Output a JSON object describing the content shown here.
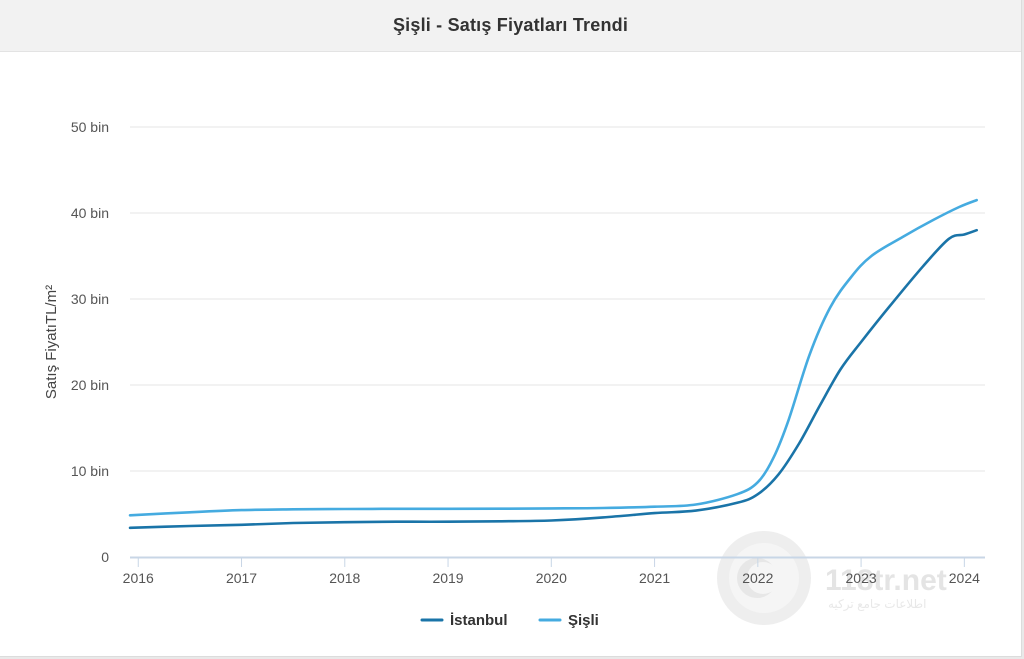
{
  "header": {
    "title": "Şişli - Satış Fiyatları Trendi"
  },
  "watermark": {
    "text": "118tr.net",
    "subtitle": "اطلاعات جامع ترکیه"
  },
  "colors": {
    "istanbul": "#1a74a8",
    "sisli": "#45abe0",
    "grid": "#e6e6e6",
    "axis": "#c8d6e6"
  },
  "chart_data": {
    "type": "line",
    "title": "Şişli - Satış Fiyatları Trendi",
    "xlabel": "",
    "ylabel": "Satış FiyatıTL/m²",
    "x_ticks": [
      "2016",
      "2017",
      "2018",
      "2019",
      "2020",
      "2021",
      "2022",
      "2023",
      "2024"
    ],
    "y_ticks": [
      "0",
      "10 bin",
      "20 bin",
      "30 bin",
      "40 bin",
      "50 bin"
    ],
    "xlim": [
      2015.92,
      2024.2
    ],
    "ylim": [
      0,
      50000
    ],
    "legend_position": "bottom-center",
    "series": [
      {
        "name": "İstanbul",
        "x": [
          2015.92,
          2016.5,
          2017.0,
          2017.5,
          2018.0,
          2018.5,
          2019.0,
          2019.5,
          2020.0,
          2020.5,
          2021.0,
          2021.4,
          2021.8,
          2022.0,
          2022.2,
          2022.4,
          2022.6,
          2022.8,
          2023.0,
          2023.3,
          2023.6,
          2023.85,
          2024.0,
          2024.12
        ],
        "y": [
          3400,
          3600,
          3750,
          3950,
          4050,
          4100,
          4100,
          4150,
          4250,
          4600,
          5100,
          5400,
          6300,
          7300,
          9600,
          13200,
          17600,
          21800,
          25000,
          29500,
          33800,
          37000,
          37500,
          38000
        ]
      },
      {
        "name": "Şişli",
        "x": [
          2015.92,
          2016.5,
          2017.0,
          2017.5,
          2018.0,
          2018.5,
          2019.0,
          2019.5,
          2020.0,
          2020.5,
          2021.0,
          2021.4,
          2021.8,
          2022.0,
          2022.15,
          2022.3,
          2022.5,
          2022.7,
          2022.9,
          2023.1,
          2023.4,
          2023.7,
          2023.95,
          2024.12
        ],
        "y": [
          4850,
          5200,
          5450,
          5550,
          5580,
          5600,
          5600,
          5620,
          5650,
          5700,
          5850,
          6100,
          7300,
          8700,
          11500,
          16000,
          23500,
          29000,
          32500,
          35000,
          37200,
          39200,
          40700,
          41500
        ]
      }
    ]
  }
}
